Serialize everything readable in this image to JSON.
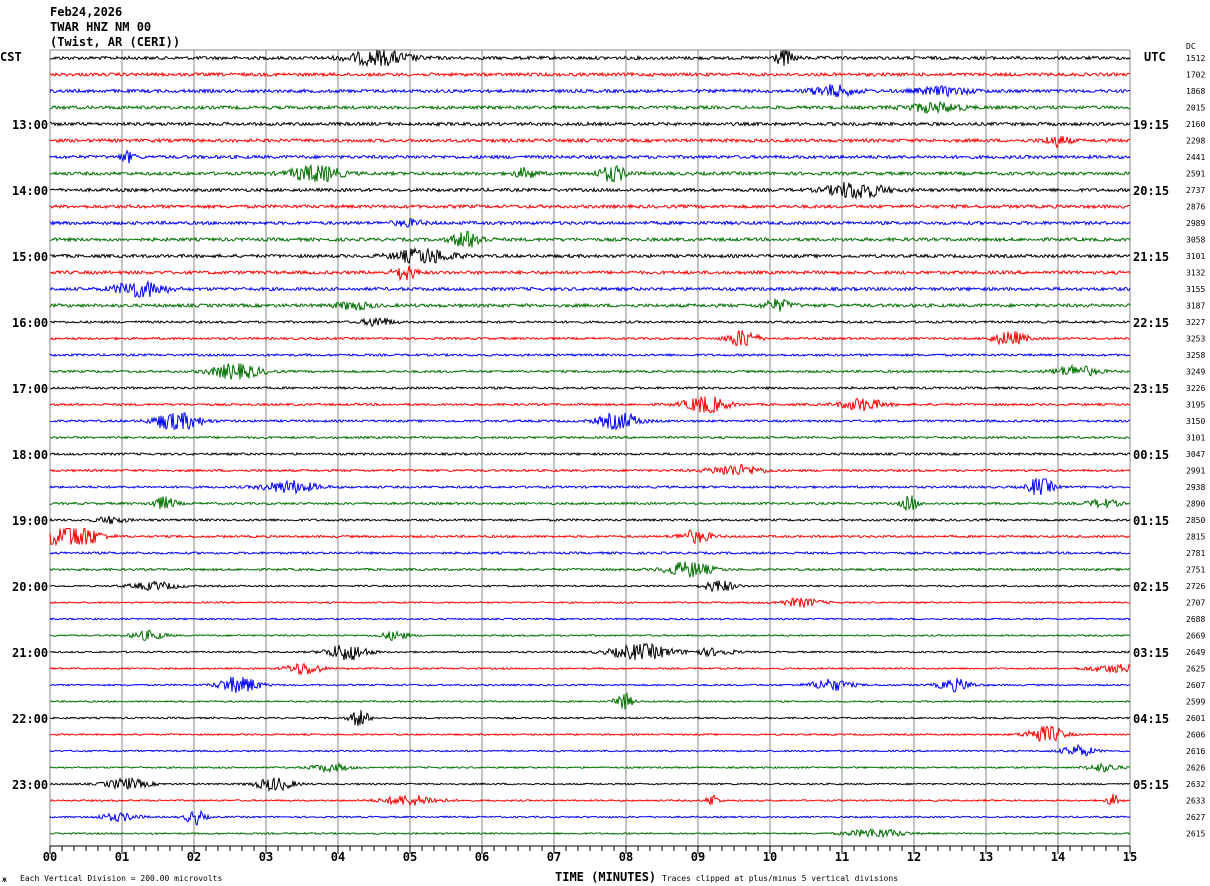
{
  "header": {
    "date": "Feb24,2026",
    "station": "TWAR HNZ NM 00",
    "location": "(Twist, AR (CERI))"
  },
  "left_axis_title": "CST",
  "right_axis_title": "UTC",
  "dc_title": "DC",
  "footer": {
    "scale_note": "Each Vertical Division =  200.00 microvolts",
    "xlabel": "TIME (MINUTES)",
    "clip_note": "Traces clipped at plus/minus 5 vertical divisions",
    "corner_mark": "ж"
  },
  "chart_data": {
    "type": "line",
    "subtype": "helicorder",
    "xlabel": "TIME (MINUTES)",
    "xlim": [
      0,
      15
    ],
    "x_ticks": [
      "00",
      "01",
      "02",
      "03",
      "04",
      "05",
      "06",
      "07",
      "08",
      "09",
      "10",
      "11",
      "12",
      "13",
      "14",
      "15"
    ],
    "grid": "vertical lines every minute",
    "trace_colors": [
      "#000000",
      "#ff0000",
      "#0000ff",
      "#007000"
    ],
    "rows_per_hour": 4,
    "cst_labels": [
      "",
      "",
      "",
      "",
      "13:00",
      "",
      "",
      "",
      "14:00",
      "",
      "",
      "",
      "15:00",
      "",
      "",
      "",
      "16:00",
      "",
      "",
      "",
      "17:00",
      "",
      "",
      "",
      "18:00",
      "",
      "",
      "",
      "19:00",
      "",
      "",
      "",
      "20:00",
      "",
      "",
      "",
      "21:00",
      "",
      "",
      "",
      "22:00",
      "",
      "",
      "",
      "23:00",
      "",
      "",
      ""
    ],
    "utc_labels": [
      "",
      "",
      "",
      "",
      "19:15",
      "",
      "",
      "",
      "20:15",
      "",
      "",
      "",
      "21:15",
      "",
      "",
      "",
      "22:15",
      "",
      "",
      "",
      "23:15",
      "",
      "",
      "",
      "00:15",
      "",
      "",
      "",
      "01:15",
      "",
      "",
      "",
      "02:15",
      "",
      "",
      "",
      "03:15",
      "",
      "",
      "",
      "04:15",
      "",
      "",
      "",
      "05:15",
      "",
      "",
      ""
    ],
    "dc_values": [
      "1512",
      "1702",
      "1868",
      "2015",
      "2160",
      "2298",
      "2441",
      "2591",
      "2737",
      "2876",
      "2989",
      "3058",
      "3101",
      "3132",
      "3155",
      "3187",
      "3227",
      "3253",
      "3258",
      "3249",
      "3226",
      "3195",
      "3150",
      "3101",
      "3047",
      "2991",
      "2938",
      "2890",
      "2850",
      "2815",
      "2781",
      "2751",
      "2726",
      "2707",
      "2688",
      "2669",
      "2649",
      "2625",
      "2607",
      "2599",
      "2601",
      "2606",
      "2616",
      "2626",
      "2632",
      "2633",
      "2627",
      "2615"
    ]
  }
}
